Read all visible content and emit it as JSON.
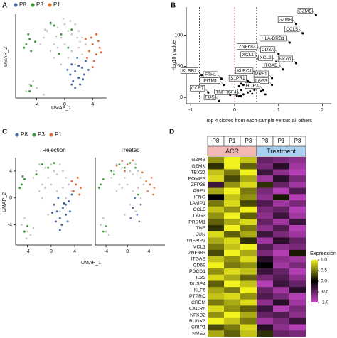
{
  "chart_data": [
    {
      "type": "scatter",
      "panel": "A",
      "xlabel": "UMAP_1",
      "ylabel": "UMAP_2",
      "xlim": [
        -7,
        6
      ],
      "ylim": [
        -6,
        6.5
      ],
      "xticks": [
        -4,
        0,
        4
      ],
      "series": [
        {
          "color": "#c4c4c4",
          "x": [
            -3,
            -2.5,
            -2,
            -1.5,
            -1,
            -0.5,
            0,
            0.5,
            1,
            1.5,
            2,
            2.5,
            3,
            -2,
            -1,
            0,
            1,
            2,
            -1.5,
            0.5,
            1.5,
            -0.5,
            2.5,
            3.5,
            -3.5,
            -5,
            -4.5,
            -5.5,
            -4,
            -3,
            -2.8,
            -0.2,
            0.8,
            1.8,
            -1.2,
            2.2
          ],
          "y": [
            3,
            4,
            5,
            2,
            4.5,
            3,
            5,
            4,
            3.5,
            5,
            4,
            3,
            2,
            1,
            1.5,
            2,
            1,
            1.5,
            0,
            0,
            -1,
            -1,
            0.5,
            1,
            2,
            -4,
            -3.5,
            -5,
            -4.5,
            -5.5,
            4.2,
            5.8,
            5.5,
            3,
            3.2,
            2.4
          ]
        },
        {
          "name": "P8",
          "color": "#4a6fa5",
          "x": [
            1,
            1.5,
            2,
            2.5,
            1.2,
            1.8,
            2.8,
            0.8,
            2.2,
            3,
            1.5,
            2,
            0.4,
            1,
            2.6,
            3.4
          ],
          "y": [
            -1,
            -2,
            -3,
            -1.5,
            -3.5,
            0,
            -2.5,
            -2.5,
            -4,
            -0.5,
            -4.5,
            -1.2,
            -1.8,
            -4,
            -3.2,
            -1.8
          ]
        },
        {
          "name": "P3",
          "color": "#3c9a3c",
          "x": [
            -5.5,
            -5,
            -5.8,
            -4.8,
            -5.2,
            -2,
            -1.5,
            -0.5,
            1,
            -4.8,
            -5,
            0.5,
            -4.2,
            -0.8
          ],
          "y": [
            2,
            2.8,
            1.5,
            1,
            3.5,
            5.2,
            4.8,
            3.5,
            4.2,
            -4.2,
            -5,
            1.5,
            2.4,
            0.6
          ]
        },
        {
          "name": "P1",
          "color": "#e0703a",
          "x": [
            3.5,
            4,
            4.5,
            5,
            3.8,
            4.2,
            4.8,
            3.2,
            5.2,
            4.5,
            3,
            4
          ],
          "y": [
            1,
            2,
            0.5,
            1.5,
            3,
            -0.5,
            2.5,
            0,
            0.8,
            3.5,
            2.8,
            -1.4
          ]
        }
      ]
    },
    {
      "type": "scatter",
      "panel": "B",
      "xlabel": "Top 4 clones from each sample versus all others",
      "ylabel": "-log10 pvalue",
      "xlim": [
        -1.1,
        2.2
      ],
      "ylim": [
        -10,
        145
      ],
      "xticks": [
        -1,
        0,
        1,
        2
      ],
      "yticks": [
        0,
        50,
        100
      ],
      "vlines": [
        {
          "x": -0.8,
          "color": "#000000"
        },
        {
          "x": 0,
          "color": "#d03030"
        },
        {
          "x": 0.5,
          "color": "#000000"
        }
      ],
      "series": [
        {
          "color": "#000000",
          "x": [
            0.1,
            0.2,
            0.3,
            0.15,
            0.25,
            0.05,
            0.35,
            0.4,
            0.2,
            0.1,
            0.3,
            0.45,
            -0.1,
            -0.2,
            0.5,
            0.6,
            0.7,
            0.55,
            0.25,
            0.15
          ],
          "y": [
            2,
            5,
            8,
            12,
            15,
            3,
            10,
            6,
            20,
            18,
            26,
            12,
            4,
            8,
            18,
            10,
            5,
            28,
            30,
            22
          ]
        }
      ],
      "annotations": [
        {
          "text": "GZMB",
          "x": 1.85,
          "y": 132
        },
        {
          "text": "GZMH",
          "x": 1.4,
          "y": 118
        },
        {
          "text": "CCL5",
          "x": 1.55,
          "y": 103
        },
        {
          "text": "HLA-DRB1",
          "x": 1.25,
          "y": 88
        },
        {
          "text": "ZNF683",
          "x": 0.6,
          "y": 75
        },
        {
          "text": "CD8A",
          "x": 1.0,
          "y": 70
        },
        {
          "text": "XCL1",
          "x": 0.55,
          "y": 62
        },
        {
          "text": "XCL2",
          "x": 0.95,
          "y": 57
        },
        {
          "text": "NKG7",
          "x": 1.4,
          "y": 55
        },
        {
          "text": "ITGAE",
          "x": 1.1,
          "y": 45
        },
        {
          "text": "KLRC1",
          "x": 0.5,
          "y": 36
        },
        {
          "text": "PRF1",
          "x": 0.85,
          "y": 31
        },
        {
          "text": "KLRB1",
          "x": -0.75,
          "y": 36
        },
        {
          "text": "FTH1",
          "x": -0.3,
          "y": 30
        },
        {
          "text": "S1PR1",
          "x": 0.35,
          "y": 24
        },
        {
          "text": "IFITM1",
          "x": -0.25,
          "y": 20
        },
        {
          "text": "LAG3",
          "x": 0.85,
          "y": 20
        },
        {
          "text": "HOPX",
          "x": 0.65,
          "y": 12
        },
        {
          "text": "CCR7",
          "x": -0.6,
          "y": 8
        },
        {
          "text": "TNFRSF4",
          "x": 0.15,
          "y": 2
        },
        {
          "text": "FOS",
          "x": -0.35,
          "y": -6
        }
      ]
    },
    {
      "type": "scatter",
      "panel": "C",
      "title": "Rejection",
      "xlabel": "UMAP_1",
      "ylabel": "UMAP_2",
      "xlim": [
        -6,
        7
      ],
      "ylim": [
        -7,
        6
      ],
      "xticks": [
        -4,
        0,
        4
      ],
      "yticks": [
        -4,
        0,
        4
      ],
      "series": [
        {
          "color": "#c4c4c4",
          "x": [
            -3,
            -2.5,
            -2,
            -1.5,
            -1,
            -0.5,
            0,
            0.5,
            1,
            1.5,
            2,
            2.5,
            3,
            -2,
            -1,
            0,
            1,
            2,
            -4.5,
            -5,
            -4,
            -3.5,
            -4.2,
            -3,
            0.5,
            1.5,
            -0.5,
            -1.5,
            2.5,
            3.5
          ],
          "y": [
            3,
            4,
            5,
            2,
            4.5,
            3,
            5,
            4,
            3.5,
            5,
            4,
            3,
            2,
            1,
            1.5,
            2,
            1,
            1.5,
            -3,
            -4,
            -5,
            -5.5,
            -6,
            -4.5,
            -1,
            -2,
            -2.5,
            0,
            0,
            1
          ]
        },
        {
          "name": "P8",
          "color": "#4a6fa5",
          "x": [
            0.5,
            1,
            1.5,
            2,
            2.5,
            3,
            0.8,
            1.8,
            2.8,
            1.2,
            2.2,
            3.2,
            0.2,
            1.5,
            2.5,
            3.5
          ],
          "y": [
            -1,
            -2,
            -3,
            -1.5,
            -2.5,
            -0.5,
            -3.5,
            -4,
            -3.5,
            0,
            -0.8,
            -2,
            -2.2,
            -4.8,
            -1,
            0.5
          ]
        },
        {
          "name": "P3",
          "color": "#3c9a3c",
          "x": [
            -5,
            -4.5,
            -5.3,
            -4.8,
            -1.5,
            -0.5,
            0.5,
            -4,
            -4.5,
            -2.5
          ],
          "y": [
            2,
            2.8,
            1.5,
            3.2,
            5,
            4.5,
            5.2,
            -4.2,
            -5,
            3.5
          ]
        },
        {
          "name": "P1",
          "color": "#e0703a",
          "x": [
            3.8,
            4.2,
            4.8,
            3.5,
            5,
            4.5
          ],
          "y": [
            1,
            2,
            0.5,
            2.5,
            1.5,
            3
          ]
        }
      ]
    },
    {
      "type": "scatter",
      "title": "Treated",
      "xlim": [
        -6,
        7
      ],
      "ylim": [
        -7,
        6
      ],
      "xticks": [
        -4,
        0,
        4
      ],
      "series": [
        {
          "color": "#c4c4c4",
          "x": [
            -3,
            -2.5,
            -2,
            -1.5,
            -1,
            -0.5,
            0,
            0.5,
            1,
            1.5,
            2,
            2.5,
            3,
            -2,
            -1,
            0,
            1,
            2,
            -4.5,
            -5,
            -4,
            -3.5,
            0.5,
            1.5,
            -0.5,
            2.5
          ],
          "y": [
            3,
            4,
            5,
            2,
            4.5,
            3,
            5,
            4,
            3.5,
            5,
            4,
            3,
            2,
            1,
            1.5,
            2,
            1,
            1.5,
            -3,
            -4,
            -5,
            -5.5,
            -1,
            -2,
            -2.5,
            0
          ]
        },
        {
          "color": "#4a6fa5",
          "x": [
            1,
            1.8,
            2.5,
            0.6,
            2.2,
            1.4
          ],
          "y": [
            -1.5,
            -2.5,
            -1,
            -3,
            -3.5,
            0
          ]
        },
        {
          "color": "#3c9a3c",
          "x": [
            -5,
            -4.5,
            -5.3,
            -1.5,
            -0.5,
            0.5,
            -4,
            -4.5,
            -2.5,
            1.5,
            -3,
            2
          ],
          "y": [
            2,
            2.8,
            1.5,
            5,
            4.5,
            5.2,
            -4.2,
            -5,
            3.5,
            4.5,
            4,
            0.5
          ]
        },
        {
          "color": "#e0703a",
          "x": [
            -1,
            0,
            1,
            -2,
            -0.5,
            3.8,
            4.2,
            4.8,
            3.5,
            5,
            4.5,
            2.8
          ],
          "y": [
            5.5,
            5,
            5.6,
            4.8,
            4,
            1,
            2,
            0.5,
            2.5,
            1.5,
            3,
            3.8
          ]
        }
      ]
    },
    {
      "type": "heatmap",
      "panel": "D",
      "legend_title": "Expression",
      "columns": [
        "P8",
        "P1",
        "P3",
        "P8",
        "P1",
        "P3"
      ],
      "groups": [
        {
          "name": "ACR",
          "color": "#f2b8b4"
        },
        {
          "name": "Treatment",
          "color": "#a9d1f2"
        }
      ],
      "rows": [
        "GZMB",
        "GZMK",
        "TBX21",
        "EOMES",
        "ZFP36",
        "PRF1",
        "IFNG",
        "LAMP1",
        "CCL5",
        "LAG3",
        "PRDM1",
        "TNF",
        "JUN",
        "TNFAIP3",
        "MCL1",
        "ZNF683",
        "ITGAE",
        "CD69",
        "PDCD1",
        "IL32",
        "DUSP4",
        "KLF6",
        "PTPRC",
        "CREM",
        "CXCR6",
        "NFKB2",
        "RUNX3",
        "CRIP1",
        "NME2"
      ],
      "values": [
        [
          0.6,
          1,
          0.8,
          -0.5,
          -0.6,
          -0.7
        ],
        [
          0.2,
          1,
          0.4,
          -0.6,
          -0.2,
          -0.8
        ],
        [
          0.8,
          0.5,
          1,
          -0.3,
          -0.7,
          -0.9
        ],
        [
          0.9,
          0.3,
          0.7,
          -0.8,
          -0.2,
          -0.6
        ],
        [
          -0.3,
          0.6,
          0.9,
          0.2,
          -0.5,
          -0.8
        ],
        [
          0.7,
          1,
          0.5,
          -0.6,
          -0.9,
          -0.4
        ],
        [
          0,
          0.8,
          0.6,
          -0.7,
          0.1,
          -0.9
        ],
        [
          0.5,
          0.9,
          0.3,
          -0.4,
          -0.8,
          -0.6
        ],
        [
          0.8,
          0.6,
          1,
          -0.6,
          -0.5,
          -0.9
        ],
        [
          0.6,
          1,
          0.4,
          -0.7,
          -0.3,
          -0.8
        ],
        [
          0.4,
          0.7,
          0.9,
          -0.5,
          -0.8,
          -0.3
        ],
        [
          0.2,
          1,
          0.5,
          -0.7,
          -0.4,
          -0.9
        ],
        [
          0.9,
          0.4,
          0.7,
          -0.3,
          -0.6,
          -0.8
        ],
        [
          0.7,
          0.9,
          0.2,
          -0.8,
          -0.2,
          -0.5
        ],
        [
          0.5,
          0.8,
          1,
          -0.4,
          -0.7,
          -0.6
        ],
        [
          0.3,
          1,
          0.7,
          -0.6,
          -0.9,
          0.1
        ],
        [
          0.8,
          0.6,
          0.9,
          -0.2,
          -0.7,
          -0.8
        ],
        [
          1,
          0.5,
          0.6,
          0,
          -0.8,
          -0.6
        ],
        [
          0.6,
          0.9,
          0.8,
          -0.3,
          -0.5,
          -0.9
        ],
        [
          0.9,
          0.7,
          0.4,
          -0.6,
          -0.4,
          -0.7
        ],
        [
          0.4,
          1,
          0.8,
          -0.9,
          -0.3,
          -0.5
        ],
        [
          0.7,
          0.5,
          1,
          -0.5,
          -0.8,
          -0.2
        ],
        [
          0.8,
          0.9,
          0.6,
          -0.4,
          -0.6,
          -0.9
        ],
        [
          0.5,
          0.7,
          0.9,
          -0.7,
          -0.2,
          -0.8
        ],
        [
          0.9,
          0.6,
          0.4,
          -0.3,
          -0.9,
          -0.6
        ],
        [
          0.6,
          1,
          0.7,
          -0.5,
          -0.4,
          -0.7
        ],
        [
          1,
          0.8,
          0.5,
          -0.8,
          -0.6,
          -0.3
        ],
        [
          0.3,
          0.5,
          0.9,
          -0.2,
          -0.7,
          -0.9
        ],
        [
          0.7,
          0.4,
          0.8,
          0.2,
          -0.5,
          -0.6
        ]
      ],
      "clim": [
        -1,
        1
      ],
      "colorscale": [
        "#c845c8",
        "#000000",
        "#f2f21e"
      ],
      "cticks": [
        {
          "value": 1,
          "label": "1.0"
        },
        0.5,
        {
          "value": 0,
          "label": "0.0"
        },
        -0.5,
        {
          "value": -1,
          "label": "-1.0"
        }
      ]
    }
  ]
}
